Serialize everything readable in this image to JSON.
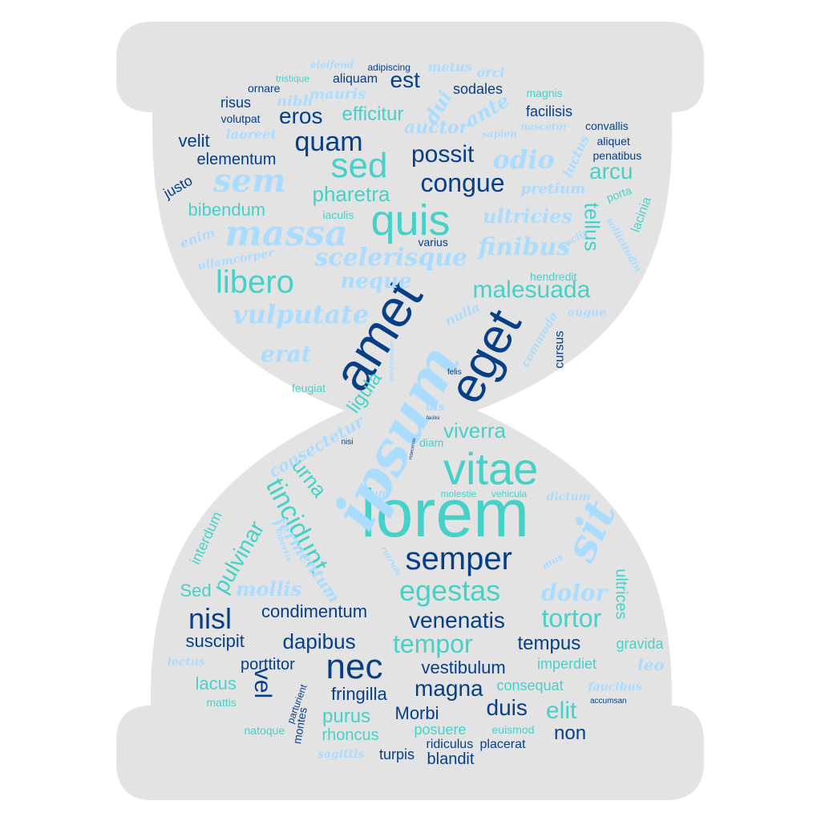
{
  "palette": {
    "background": "#ffffff",
    "shape_fill": "#e3e3e3",
    "dark_blue": "#063f86",
    "light_blue": "#a9dcff",
    "teal": "#46d1c8"
  },
  "shape": "hourglass",
  "words": [
    {
      "t": "lorem",
      "c": "teal",
      "f": "n"
    },
    {
      "t": "ipsum",
      "c": "light_blue",
      "f": "c"
    },
    {
      "t": "amet",
      "c": "dark_blue",
      "f": "n"
    },
    {
      "t": "eget",
      "c": "dark_blue",
      "f": "n"
    },
    {
      "t": "vitae",
      "c": "teal",
      "f": "n"
    },
    {
      "t": "quis",
      "c": "teal",
      "f": "n"
    },
    {
      "t": "sed",
      "c": "teal",
      "f": "n"
    },
    {
      "t": "sit",
      "c": "light_blue",
      "f": "c"
    },
    {
      "t": "semper",
      "c": "dark_blue",
      "f": "n"
    },
    {
      "t": "nec",
      "c": "dark_blue",
      "f": "n"
    },
    {
      "t": "massa",
      "c": "light_blue",
      "f": "c"
    },
    {
      "t": "sem",
      "c": "light_blue",
      "f": "c"
    },
    {
      "t": "quam",
      "c": "dark_blue",
      "f": "n"
    },
    {
      "t": "possit",
      "c": "dark_blue",
      "f": "n"
    },
    {
      "t": "congue",
      "c": "dark_blue",
      "f": "n"
    },
    {
      "t": "libero",
      "c": "teal",
      "f": "n"
    },
    {
      "t": "scelerisque",
      "c": "light_blue",
      "f": "c"
    },
    {
      "t": "malesuada",
      "c": "teal",
      "f": "n"
    },
    {
      "t": "vulputate",
      "c": "light_blue",
      "f": "c"
    },
    {
      "t": "tincidunt",
      "c": "teal",
      "f": "n"
    },
    {
      "t": "egestas",
      "c": "teal",
      "f": "n"
    },
    {
      "t": "nisl",
      "c": "dark_blue",
      "f": "n"
    },
    {
      "t": "venenatis",
      "c": "dark_blue",
      "f": "n"
    },
    {
      "t": "tortor",
      "c": "teal",
      "f": "n"
    },
    {
      "t": "tempor",
      "c": "teal",
      "f": "n"
    },
    {
      "t": "dapibus",
      "c": "dark_blue",
      "f": "n"
    },
    {
      "t": "elit",
      "c": "teal",
      "f": "n"
    },
    {
      "t": "duis",
      "c": "dark_blue",
      "f": "n"
    },
    {
      "t": "magna",
      "c": "dark_blue",
      "f": "n"
    },
    {
      "t": "vel",
      "c": "dark_blue",
      "f": "n"
    },
    {
      "t": "pulvinar",
      "c": "teal",
      "f": "n"
    },
    {
      "t": "viverra",
      "c": "teal",
      "f": "n"
    },
    {
      "t": "urna",
      "c": "teal",
      "f": "n"
    },
    {
      "t": "odio",
      "c": "light_blue",
      "f": "c"
    },
    {
      "t": "finibus",
      "c": "light_blue",
      "f": "c"
    },
    {
      "t": "tellus",
      "c": "teal",
      "f": "n"
    },
    {
      "t": "arcu",
      "c": "teal",
      "f": "n"
    },
    {
      "t": "pharetra",
      "c": "teal",
      "f": "n"
    },
    {
      "t": "eros",
      "c": "dark_blue",
      "f": "n"
    },
    {
      "t": "est",
      "c": "dark_blue",
      "f": "n"
    },
    {
      "t": "efficitur",
      "c": "teal",
      "f": "n"
    },
    {
      "t": "ultricies",
      "c": "light_blue",
      "f": "c"
    },
    {
      "t": "neque",
      "c": "light_blue",
      "f": "c"
    },
    {
      "t": "erat",
      "c": "light_blue",
      "f": "c"
    },
    {
      "t": "dolor",
      "c": "light_blue",
      "f": "c"
    },
    {
      "t": "mollis",
      "c": "light_blue",
      "f": "c"
    },
    {
      "t": "fermentum",
      "c": "light_blue",
      "f": "c"
    },
    {
      "t": "consectetur",
      "c": "light_blue",
      "f": "c"
    },
    {
      "t": "ligula",
      "c": "teal",
      "f": "n"
    },
    {
      "t": "condimentum",
      "c": "dark_blue",
      "f": "n"
    },
    {
      "t": "suscipit",
      "c": "dark_blue",
      "f": "n"
    },
    {
      "t": "tempus",
      "c": "dark_blue",
      "f": "n"
    },
    {
      "t": "vestibulum",
      "c": "dark_blue",
      "f": "n"
    },
    {
      "t": "fringilla",
      "c": "dark_blue",
      "f": "n"
    },
    {
      "t": "Morbi",
      "c": "dark_blue",
      "f": "n"
    },
    {
      "t": "purus",
      "c": "teal",
      "f": "n"
    },
    {
      "t": "rhoncus",
      "c": "teal",
      "f": "n"
    },
    {
      "t": "non",
      "c": "dark_blue",
      "f": "n"
    },
    {
      "t": "posuere",
      "c": "teal",
      "f": "n"
    },
    {
      "t": "turpis",
      "c": "dark_blue",
      "f": "n"
    },
    {
      "t": "blandit",
      "c": "dark_blue",
      "f": "n"
    },
    {
      "t": "lacus",
      "c": "teal",
      "f": "n"
    },
    {
      "t": "porttitor",
      "c": "dark_blue",
      "f": "n"
    },
    {
      "t": "Sed",
      "c": "teal",
      "f": "n"
    },
    {
      "t": "interdum",
      "c": "teal",
      "f": "n"
    },
    {
      "t": "ultrices",
      "c": "teal",
      "f": "n"
    },
    {
      "t": "gravida",
      "c": "teal",
      "f": "n"
    },
    {
      "t": "imperdiet",
      "c": "teal",
      "f": "n"
    },
    {
      "t": "consequat",
      "c": "teal",
      "f": "n"
    },
    {
      "t": "leo",
      "c": "light_blue",
      "f": "c"
    },
    {
      "t": "faucibus",
      "c": "light_blue",
      "f": "c"
    },
    {
      "t": "lectus",
      "c": "light_blue",
      "f": "c"
    },
    {
      "t": "bibendum",
      "c": "teal",
      "f": "n"
    },
    {
      "t": "elementum",
      "c": "dark_blue",
      "f": "n"
    },
    {
      "t": "velit",
      "c": "dark_blue",
      "f": "n"
    },
    {
      "t": "justo",
      "c": "dark_blue",
      "f": "n"
    },
    {
      "t": "enim",
      "c": "light_blue",
      "f": "c"
    },
    {
      "t": "ullamcorper",
      "c": "light_blue",
      "f": "c"
    },
    {
      "t": "risus",
      "c": "dark_blue",
      "f": "n"
    },
    {
      "t": "volutpat",
      "c": "dark_blue",
      "f": "n"
    },
    {
      "t": "laoreet",
      "c": "light_blue",
      "f": "c"
    },
    {
      "t": "nibh",
      "c": "light_blue",
      "f": "c"
    },
    {
      "t": "mauris",
      "c": "light_blue",
      "f": "c"
    },
    {
      "t": "aliquam",
      "c": "dark_blue",
      "f": "n"
    },
    {
      "t": "ornare",
      "c": "dark_blue",
      "f": "n"
    },
    {
      "t": "tristique",
      "c": "teal",
      "f": "n"
    },
    {
      "t": "eleifend",
      "c": "light_blue",
      "f": "c"
    },
    {
      "t": "adipiscing",
      "c": "dark_blue",
      "f": "n"
    },
    {
      "t": "metus",
      "c": "light_blue",
      "f": "c"
    },
    {
      "t": "orci",
      "c": "light_blue",
      "f": "c"
    },
    {
      "t": "sodales",
      "c": "dark_blue",
      "f": "n"
    },
    {
      "t": "magnis",
      "c": "teal",
      "f": "n"
    },
    {
      "t": "facilisis",
      "c": "dark_blue",
      "f": "n"
    },
    {
      "t": "dui",
      "c": "light_blue",
      "f": "c"
    },
    {
      "t": "ante",
      "c": "light_blue",
      "f": "c"
    },
    {
      "t": "auctor",
      "c": "light_blue",
      "f": "c"
    },
    {
      "t": "nascetur",
      "c": "light_blue",
      "f": "c"
    },
    {
      "t": "sapien",
      "c": "light_blue",
      "f": "c"
    },
    {
      "t": "convallis",
      "c": "dark_blue",
      "f": "n"
    },
    {
      "t": "aliquet",
      "c": "dark_blue",
      "f": "n"
    },
    {
      "t": "penatibus",
      "c": "dark_blue",
      "f": "n"
    },
    {
      "t": "luctus",
      "c": "light_blue",
      "f": "c"
    },
    {
      "t": "pretium",
      "c": "light_blue",
      "f": "c"
    },
    {
      "t": "porta",
      "c": "teal",
      "f": "n"
    },
    {
      "t": "lacinia",
      "c": "teal",
      "f": "n"
    },
    {
      "t": "sociis",
      "c": "light_blue",
      "f": "c"
    },
    {
      "t": "sollicitudin",
      "c": "light_blue",
      "f": "c"
    },
    {
      "t": "iaculis",
      "c": "teal",
      "f": "n"
    },
    {
      "t": "varius",
      "c": "dark_blue",
      "f": "n"
    },
    {
      "t": "hendredit",
      "c": "teal",
      "f": "n"
    },
    {
      "t": "nulla",
      "c": "light_blue",
      "f": "c"
    },
    {
      "t": "augue",
      "c": "light_blue",
      "f": "c"
    },
    {
      "t": "commodo",
      "c": "light_blue",
      "f": "c"
    },
    {
      "t": "cursus",
      "c": "dark_blue",
      "f": "n"
    },
    {
      "t": "felis",
      "c": "dark_blue",
      "f": "n"
    },
    {
      "t": "feugiat",
      "c": "teal",
      "f": "n"
    },
    {
      "t": "dis",
      "c": "light_blue",
      "f": "c"
    },
    {
      "t": "diam",
      "c": "teal",
      "f": "n"
    },
    {
      "t": "nisi",
      "c": "dark_blue",
      "f": "n"
    },
    {
      "t": "nunc",
      "c": "light_blue",
      "f": "c"
    },
    {
      "t": "molestie",
      "c": "teal",
      "f": "n"
    },
    {
      "t": "vehicula",
      "c": "teal",
      "f": "n"
    },
    {
      "t": "dictum",
      "c": "light_blue",
      "f": "c"
    },
    {
      "t": "mus",
      "c": "light_blue",
      "f": "c"
    },
    {
      "t": "lobortis",
      "c": "light_blue",
      "f": "c"
    },
    {
      "t": "parturient",
      "c": "dark_blue",
      "f": "n"
    },
    {
      "t": "montes",
      "c": "dark_blue",
      "f": "n"
    },
    {
      "t": "mattis",
      "c": "teal",
      "f": "n"
    },
    {
      "t": "natoque",
      "c": "teal",
      "f": "n"
    },
    {
      "t": "sagittis",
      "c": "light_blue",
      "f": "c"
    },
    {
      "t": "euismod",
      "c": "teal",
      "f": "n"
    },
    {
      "t": "ridiculus",
      "c": "dark_blue",
      "f": "n"
    },
    {
      "t": "placerat",
      "c": "dark_blue",
      "f": "n"
    },
    {
      "t": "accumsan",
      "c": "dark_blue",
      "f": "n"
    },
    {
      "t": "pellentesque",
      "c": "light_blue",
      "f": "c"
    },
    {
      "t": "facilisi",
      "c": "dark_blue",
      "f": "n"
    },
    {
      "t": "maecenas",
      "c": "dark_blue",
      "f": "n"
    },
    {
      "t": "rutrum",
      "c": "light_blue",
      "f": "c"
    }
  ]
}
